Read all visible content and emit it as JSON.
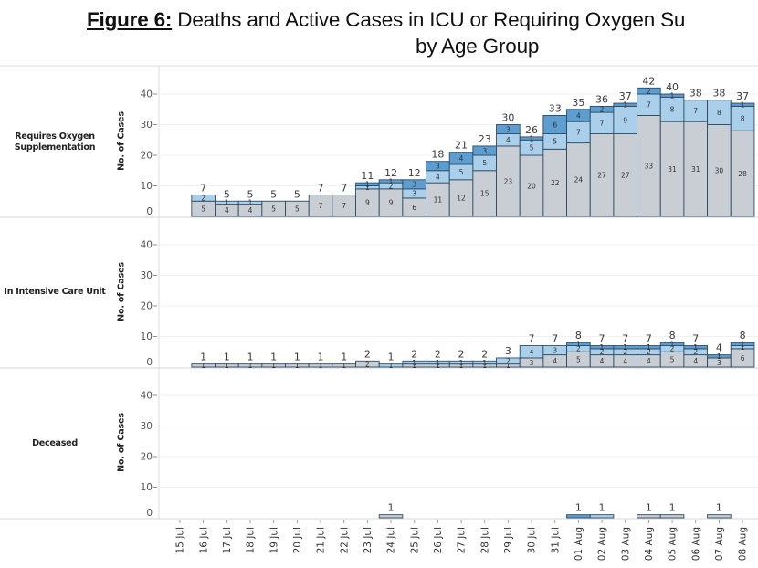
{
  "title": {
    "figure_label": "Figure 6:",
    "line1": " Deaths and Active Cases in ICU or Requiring Oxygen Su",
    "line2": "by Age Group"
  },
  "chart_data": {
    "type": "bar",
    "stacked": true,
    "title": "Figure 6: Deaths and Active Cases in ICU or Requiring Oxygen Su by Age Group",
    "xlabel": "",
    "categories": [
      "15 Jul",
      "16 Jul",
      "17 Jul",
      "18 Jul",
      "19 Jul",
      "20 Jul",
      "21 Jul",
      "22 Jul",
      "23 Jul",
      "24 Jul",
      "25 Jul",
      "26 Jul",
      "27 Jul",
      "28 Jul",
      "29 Jul",
      "30 Jul",
      "31 Jul",
      "01 Aug",
      "02 Aug",
      "03 Aug",
      "04 Aug",
      "05 Aug",
      "06 Aug",
      "07 Aug",
      "08 Aug"
    ],
    "series_colors": {
      "gray": "#c9cdd4",
      "light_blue": "#a9cfea",
      "medium_blue": "#5e9dcf"
    },
    "outline_color": "#2f4b63",
    "panels": [
      {
        "name": "Requires Oxygen Supplementation",
        "name_lines": [
          "Requires Oxygen",
          "Supplementation"
        ],
        "ylabel": "No. of Cases",
        "ylim": [
          0,
          45
        ],
        "yticks": [
          0,
          10,
          20,
          30,
          40
        ],
        "grid": true,
        "show_segment_labels": true,
        "series": [
          {
            "color_key": "gray",
            "values": [
              0,
              5,
              4,
              4,
              5,
              5,
              7,
              7,
              9,
              9,
              6,
              11,
              12,
              15,
              23,
              20,
              22,
              24,
              27,
              27,
              33,
              31,
              31,
              30,
              28
            ]
          },
          {
            "color_key": "light_blue",
            "values": [
              0,
              2,
              1,
              1,
              0,
              0,
              0,
              0,
              1,
              2,
              3,
              4,
              5,
              5,
              4,
              5,
              5,
              7,
              7,
              9,
              7,
              8,
              7,
              8,
              8
            ]
          },
          {
            "color_key": "medium_blue",
            "values": [
              0,
              0,
              0,
              0,
              0,
              0,
              0,
              0,
              1,
              1,
              3,
              3,
              4,
              3,
              3,
              1,
              6,
              4,
              2,
              1,
              2,
              1,
              0,
              0,
              1
            ]
          }
        ],
        "totals": [
          null,
          7,
          5,
          5,
          5,
          5,
          7,
          7,
          11,
          12,
          12,
          18,
          21,
          23,
          30,
          26,
          33,
          35,
          36,
          37,
          42,
          40,
          38,
          38,
          37
        ]
      },
      {
        "name": "In Intensive Care Unit",
        "name_lines": [
          "In Intensive Care Unit"
        ],
        "ylabel": "No. of Cases",
        "ylim": [
          0,
          45
        ],
        "yticks": [
          0,
          10,
          20,
          30,
          40
        ],
        "grid": true,
        "show_segment_labels": true,
        "series": [
          {
            "color_key": "gray",
            "values": [
              0,
              1,
              1,
              1,
              1,
              1,
              1,
              1,
              2,
              0,
              1,
              1,
              1,
              1,
              1,
              3,
              4,
              5,
              4,
              4,
              4,
              5,
              4,
              3,
              6
            ]
          },
          {
            "color_key": "light_blue",
            "values": [
              0,
              0,
              0,
              0,
              0,
              0,
              0,
              0,
              0,
              1,
              1,
              1,
              1,
              1,
              2,
              4,
              3,
              2,
              2,
              2,
              2,
              2,
              2,
              0,
              1
            ]
          },
          {
            "color_key": "medium_blue",
            "values": [
              0,
              0,
              0,
              0,
              0,
              0,
              0,
              0,
              0,
              0,
              0,
              0,
              0,
              0,
              0,
              0,
              0,
              1,
              1,
              1,
              1,
              1,
              1,
              1,
              1
            ]
          }
        ],
        "totals": [
          null,
          1,
          1,
          1,
          1,
          1,
          1,
          1,
          2,
          1,
          2,
          2,
          2,
          2,
          3,
          7,
          7,
          8,
          7,
          7,
          7,
          8,
          7,
          4,
          8
        ]
      },
      {
        "name": "Deceased",
        "name_lines": [
          "Deceased"
        ],
        "ylabel": "No. of Cases",
        "ylim": [
          0,
          45
        ],
        "yticks": [
          0,
          10,
          20,
          30,
          40
        ],
        "grid": true,
        "show_segment_labels": false,
        "series": [
          {
            "color_key": "gray",
            "values": [
              0,
              0,
              0,
              0,
              0,
              0,
              0,
              0,
              0,
              1,
              0,
              0,
              0,
              0,
              0,
              0,
              0,
              0,
              0,
              0,
              1,
              1,
              0,
              1,
              0
            ]
          },
          {
            "color_key": "light_blue",
            "values": [
              0,
              0,
              0,
              0,
              0,
              0,
              0,
              0,
              0,
              0,
              0,
              0,
              0,
              0,
              0,
              0,
              0,
              0,
              1,
              0,
              0,
              0,
              0,
              0,
              0
            ]
          },
          {
            "color_key": "medium_blue",
            "values": [
              0,
              0,
              0,
              0,
              0,
              0,
              0,
              0,
              0,
              0,
              0,
              0,
              0,
              0,
              0,
              0,
              0,
              1,
              0,
              0,
              0,
              0,
              0,
              0,
              0
            ]
          }
        ],
        "totals": [
          null,
          null,
          null,
          null,
          null,
          null,
          null,
          null,
          null,
          1,
          null,
          null,
          null,
          null,
          null,
          null,
          null,
          1,
          1,
          null,
          1,
          1,
          null,
          1,
          null
        ]
      }
    ]
  }
}
